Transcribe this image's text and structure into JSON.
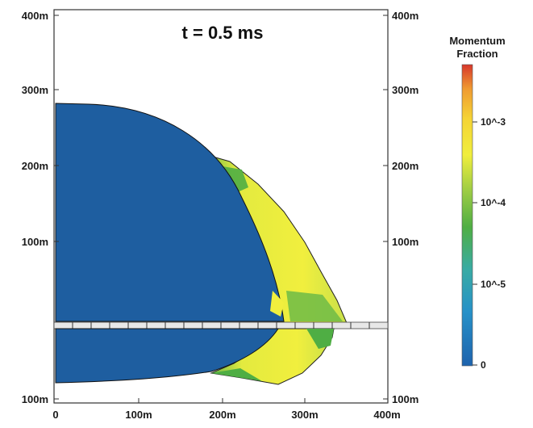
{
  "chart_data": {
    "type": "heatmap",
    "annotation": "t = 0.5 ms",
    "x_ticks": [
      "0",
      "100m",
      "200m",
      "300m",
      "400m"
    ],
    "left_ticks": [
      "400m",
      "300m",
      "200m",
      "100m",
      "100m"
    ],
    "right_ticks": [
      "400m",
      "300m",
      "200m",
      "100m",
      "100m"
    ],
    "colorbar": {
      "title_line1": "Momentum",
      "title_line2": "Fraction",
      "labels": [
        "10^-3",
        "10^-4",
        "10^-5",
        "0"
      ],
      "colors": [
        "#d7372b",
        "#ee8a2c",
        "#f5d435",
        "#f0ee3d",
        "#b6d84a",
        "#4fae44",
        "#3eab86",
        "#2d9cc6",
        "#1e73b4"
      ]
    },
    "region_colors": {
      "core": "#1e5ea0",
      "shell": "#ecec3e",
      "shell_edge": "#5fb443",
      "shell_mid": "#c4e04d"
    }
  }
}
